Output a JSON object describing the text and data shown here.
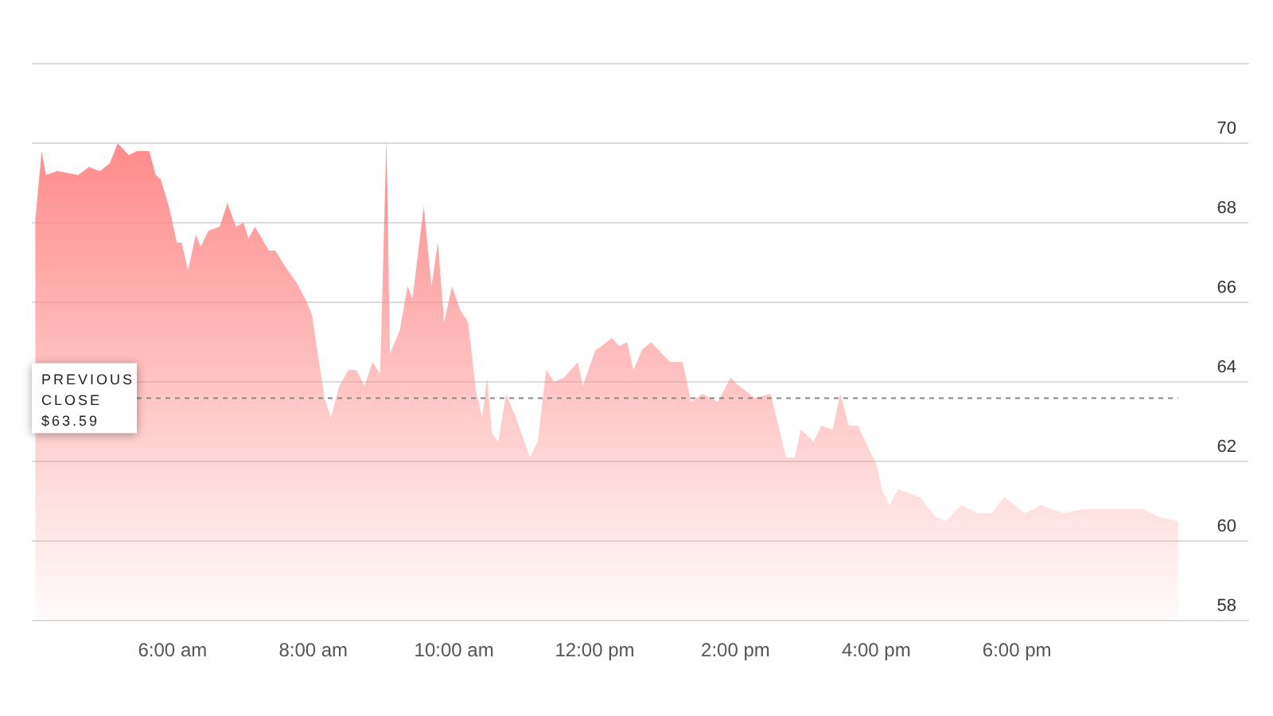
{
  "chart_data": {
    "type": "area",
    "x": [
      4.05,
      4.14,
      4.2,
      4.36,
      4.66,
      4.81,
      4.97,
      5.11,
      5.22,
      5.38,
      5.49,
      5.67,
      5.76,
      5.83,
      5.95,
      6.06,
      6.13,
      6.22,
      6.33,
      6.4,
      6.51,
      6.67,
      6.78,
      6.9,
      7.01,
      7.08,
      7.17,
      7.37,
      7.46,
      7.6,
      7.76,
      7.91,
      7.98,
      8.09,
      8.16,
      8.25,
      8.37,
      8.5,
      8.61,
      8.73,
      8.84,
      8.95,
      9.04,
      9.09,
      9.23,
      9.34,
      9.41,
      9.57,
      9.68,
      9.77,
      9.86,
      9.97,
      10.09,
      10.2,
      10.31,
      10.4,
      10.47,
      10.54,
      10.63,
      10.74,
      10.88,
      11.08,
      11.19,
      11.31,
      11.42,
      11.56,
      11.76,
      11.83,
      12.01,
      12.1,
      12.24,
      12.35,
      12.46,
      12.55,
      12.67,
      12.8,
      12.96,
      13.07,
      13.25,
      13.37,
      13.53,
      13.75,
      13.93,
      14.05,
      14.27,
      14.5,
      14.61,
      14.72,
      14.84,
      14.93,
      15.11,
      15.22,
      15.38,
      15.49,
      15.61,
      15.74,
      15.9,
      16.01,
      16.08,
      16.19,
      16.31,
      16.62,
      16.85,
      16.99,
      17.21,
      17.44,
      17.64,
      17.82,
      18.12,
      18.34,
      18.66,
      18.95,
      19.34,
      19.79,
      20.02,
      20.29
    ],
    "values": [
      68.1,
      69.8,
      69.2,
      69.3,
      69.2,
      69.4,
      69.3,
      69.5,
      70.0,
      69.7,
      69.8,
      69.8,
      69.2,
      69.1,
      68.4,
      67.5,
      67.5,
      66.8,
      67.7,
      67.4,
      67.8,
      67.9,
      68.5,
      67.9,
      68.0,
      67.6,
      67.9,
      67.3,
      67.3,
      66.9,
      66.5,
      66.0,
      65.7,
      64.4,
      63.6,
      63.1,
      63.9,
      64.3,
      64.3,
      63.9,
      64.5,
      64.2,
      70.1,
      64.7,
      65.3,
      66.4,
      66.1,
      68.4,
      66.4,
      67.5,
      65.5,
      66.4,
      65.8,
      65.5,
      63.8,
      63.1,
      64.1,
      62.7,
      62.5,
      63.7,
      63.1,
      62.1,
      62.5,
      64.3,
      64.0,
      64.1,
      64.5,
      63.9,
      64.8,
      64.9,
      65.1,
      64.9,
      65.0,
      64.3,
      64.8,
      65.0,
      64.7,
      64.5,
      64.5,
      63.5,
      63.7,
      63.5,
      64.1,
      63.9,
      63.6,
      63.7,
      62.9,
      62.1,
      62.1,
      62.8,
      62.5,
      62.9,
      62.8,
      63.7,
      62.9,
      62.9,
      62.3,
      61.9,
      61.3,
      60.9,
      61.3,
      61.1,
      60.6,
      60.5,
      60.9,
      60.7,
      60.7,
      61.1,
      60.7,
      60.9,
      60.7,
      60.8,
      60.8,
      60.8,
      60.6,
      60.5
    ],
    "color": "#ff8a8a",
    "xlim": [
      4,
      21.3
    ],
    "xticks": [
      {
        "value": 6,
        "label": "6:00 am"
      },
      {
        "value": 8,
        "label": "8:00 am"
      },
      {
        "value": 10,
        "label": "10:00 am"
      },
      {
        "value": 12,
        "label": "12:00 pm"
      },
      {
        "value": 14,
        "label": "2:00 pm"
      },
      {
        "value": 16,
        "label": "4:00 pm"
      },
      {
        "value": 18,
        "label": "6:00 pm"
      }
    ],
    "ylim": [
      58,
      72
    ],
    "yticks": [
      58,
      60,
      62,
      64,
      66,
      68,
      70,
      {
        "value": 72,
        "label": null
      }
    ],
    "grid": "y",
    "ref_lines": [
      {
        "axis": "y",
        "value": 63.59,
        "label": "PREVIOUS CLOSE $63.59",
        "line_style": "dashed",
        "color": "#888888"
      }
    ]
  }
}
